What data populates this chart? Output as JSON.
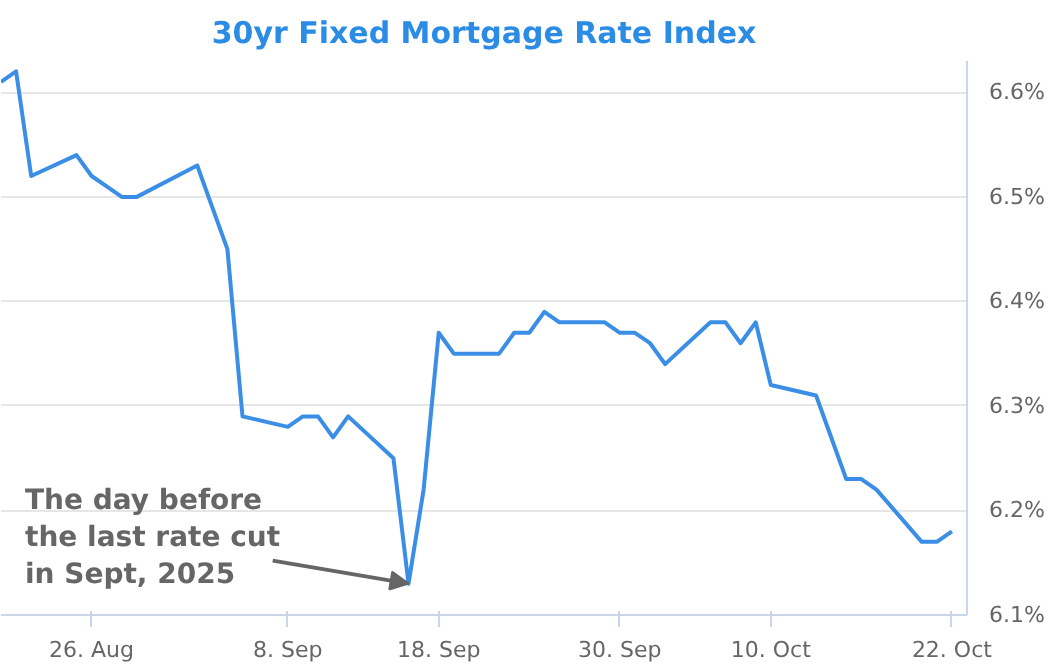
{
  "chart_data": {
    "type": "line",
    "title": "30yr Fixed Mortgage Rate Index",
    "x": [
      "2025-08-20",
      "2025-08-21",
      "2025-08-22",
      "2025-08-25",
      "2025-08-26",
      "2025-08-27",
      "2025-08-28",
      "2025-08-29",
      "2025-09-02",
      "2025-09-03",
      "2025-09-04",
      "2025-09-05",
      "2025-09-08",
      "2025-09-09",
      "2025-09-10",
      "2025-09-11",
      "2025-09-12",
      "2025-09-15",
      "2025-09-16",
      "2025-09-17",
      "2025-09-18",
      "2025-09-19",
      "2025-09-22",
      "2025-09-23",
      "2025-09-24",
      "2025-09-25",
      "2025-09-26",
      "2025-09-29",
      "2025-09-30",
      "2025-10-01",
      "2025-10-02",
      "2025-10-03",
      "2025-10-06",
      "2025-10-07",
      "2025-10-08",
      "2025-10-09",
      "2025-10-10",
      "2025-10-13",
      "2025-10-14",
      "2025-10-15",
      "2025-10-16",
      "2025-10-17",
      "2025-10-20",
      "2025-10-21",
      "2025-10-22"
    ],
    "series": [
      {
        "color": "#3a8ee6",
        "values": [
          6.61,
          6.62,
          6.52,
          6.54,
          6.52,
          6.51,
          6.5,
          6.5,
          6.53,
          6.49,
          6.45,
          6.29,
          6.28,
          6.29,
          6.29,
          6.27,
          6.29,
          6.25,
          6.13,
          6.22,
          6.37,
          6.35,
          6.35,
          6.37,
          6.37,
          6.39,
          6.38,
          6.38,
          6.37,
          6.37,
          6.36,
          6.34,
          6.38,
          6.38,
          6.36,
          6.38,
          6.32,
          6.31,
          6.27,
          6.23,
          6.23,
          6.22,
          6.17,
          6.17,
          6.18
        ]
      }
    ],
    "xlim": [
      "2025-08-20",
      "2025-10-23"
    ],
    "xticks": [
      {
        "value": "2025-08-26",
        "label": "26. Aug"
      },
      {
        "value": "2025-09-08",
        "label": "8. Sep"
      },
      {
        "value": "2025-09-18",
        "label": "18. Sep"
      },
      {
        "value": "2025-09-30",
        "label": "30. Sep"
      },
      {
        "value": "2025-10-10",
        "label": "10. Oct"
      },
      {
        "value": "2025-10-22",
        "label": "22. Oct"
      }
    ],
    "ylim": [
      6.1,
      6.63
    ],
    "yticks": [
      {
        "value": 6.1,
        "label": "6.1%"
      },
      {
        "value": 6.2,
        "label": "6.2%"
      },
      {
        "value": 6.3,
        "label": "6.3%"
      },
      {
        "value": 6.4,
        "label": "6.4%"
      },
      {
        "value": 6.5,
        "label": "6.5%"
      },
      {
        "value": 6.6,
        "label": "6.6%"
      }
    ],
    "grid": "y",
    "marker": "none",
    "line_style": "solid",
    "annotations": [
      {
        "text": "The day before\nthe last rate cut\nin Sept, 2025",
        "x": "2025-09-16",
        "y": 6.13
      }
    ]
  }
}
